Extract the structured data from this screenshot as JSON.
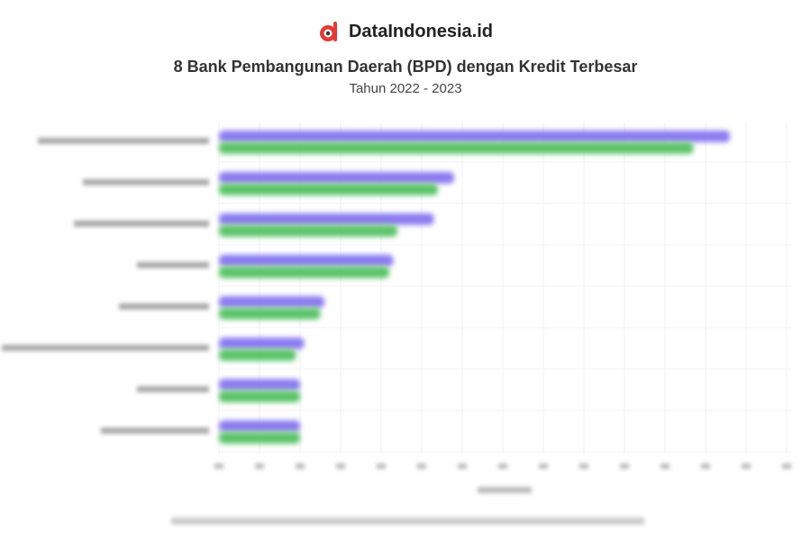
{
  "brand": {
    "name": "DataIndonesia.id",
    "logo_icon": "red-d-logo-icon",
    "logo_color": "#e53935"
  },
  "chart_data": {
    "type": "bar",
    "orientation": "horizontal",
    "title": "8 Bank Pembangunan Daerah (BPD) dengan Kredit Terbesar",
    "subtitle": "Tahun 2022 - 2023",
    "category_count": 8,
    "series": [
      {
        "color": "#8b7cf0",
        "values": [
          12.6,
          5.8,
          5.3,
          4.3,
          2.6,
          2.1,
          2.0,
          2.0
        ]
      },
      {
        "color": "#5cc46a",
        "values": [
          11.7,
          5.4,
          4.4,
          4.2,
          2.5,
          1.9,
          2.0,
          2.0
        ]
      }
    ],
    "xlim": [
      0,
      14
    ],
    "tick_count": 15,
    "grid": true,
    "note": "axis labels, category labels and source line are illegible (blurred)"
  }
}
